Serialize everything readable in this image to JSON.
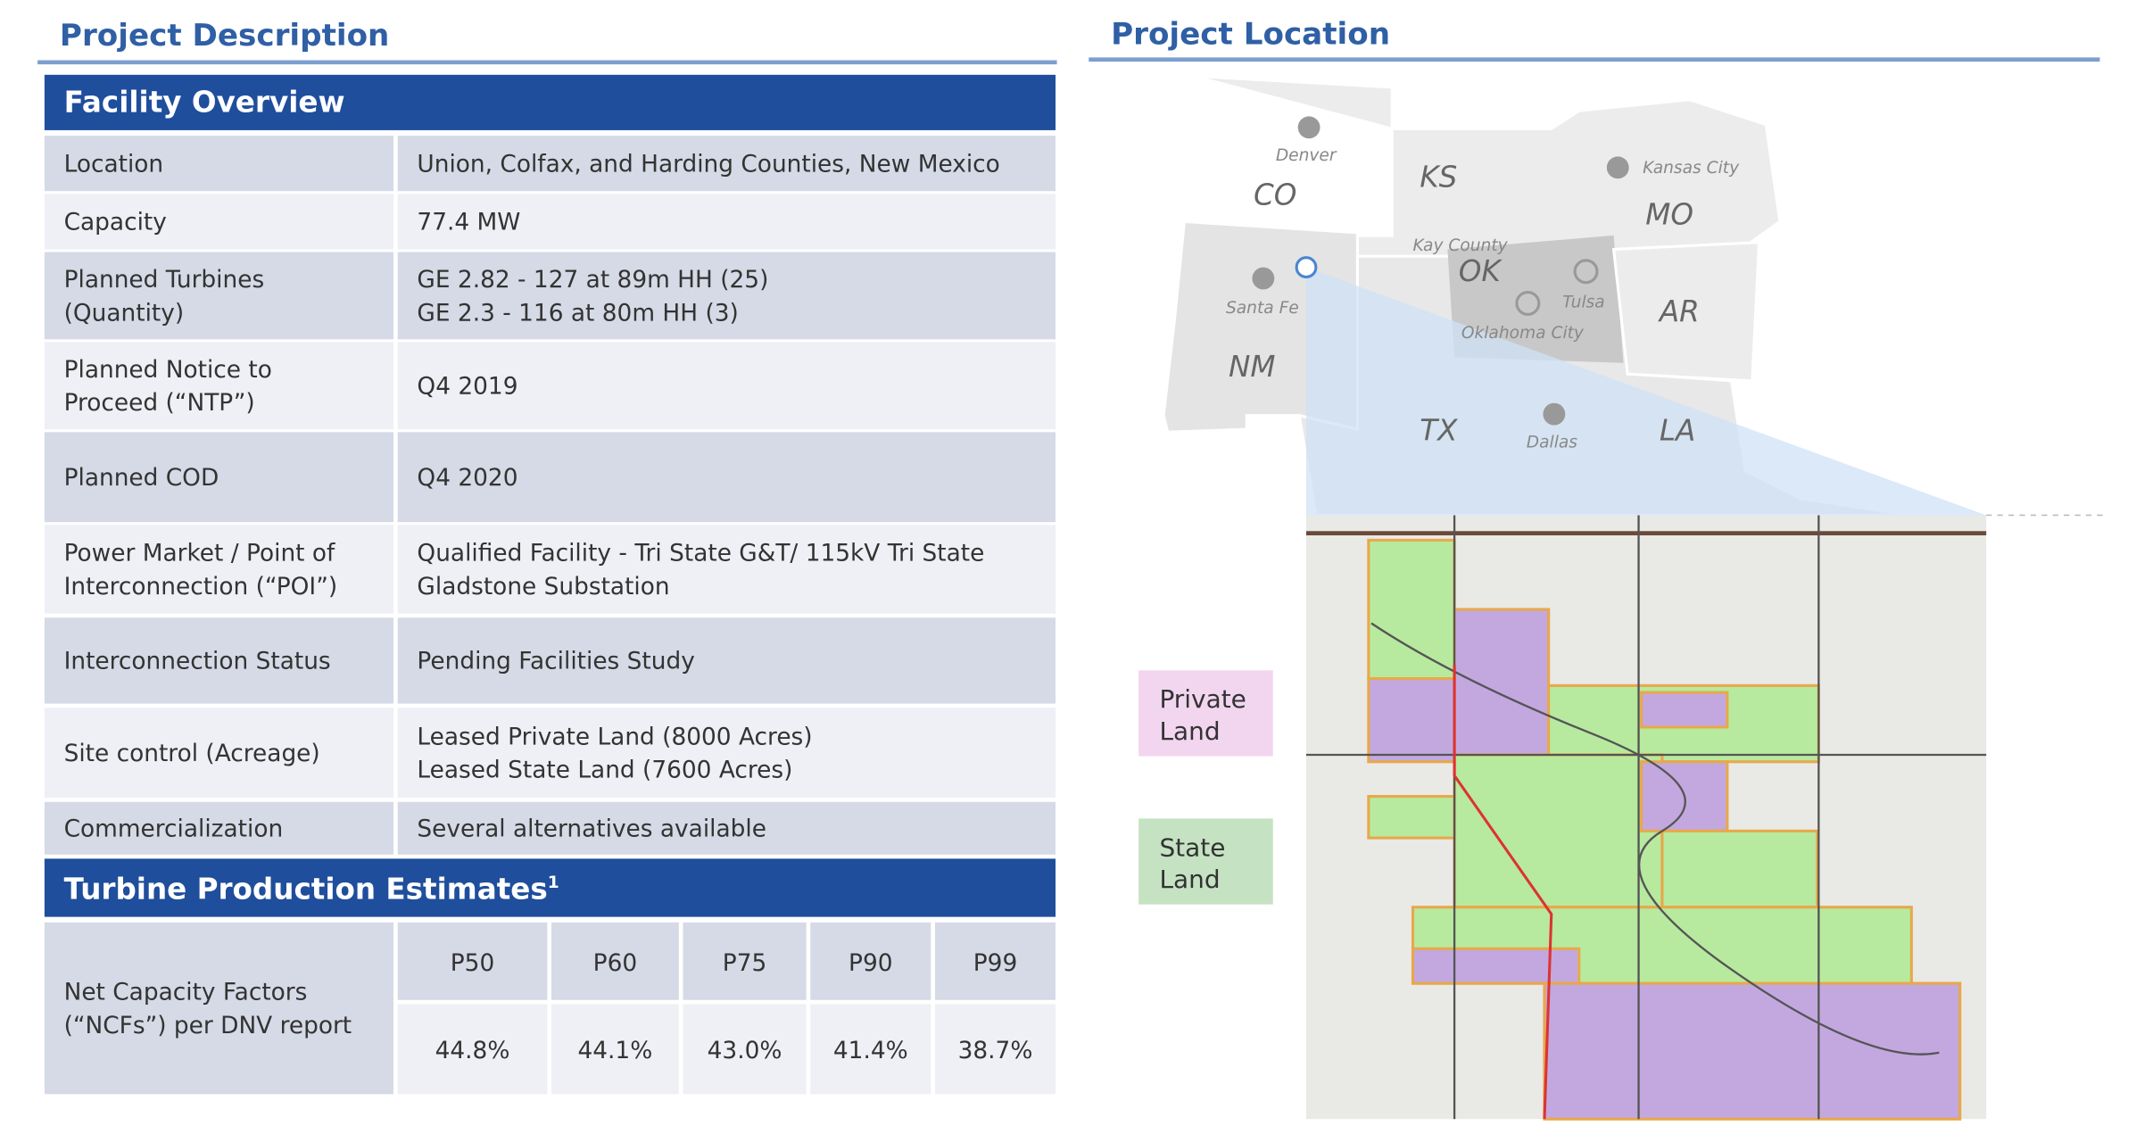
{
  "left_title": "Project Description",
  "facility": {
    "title": "Facility Overview",
    "rows": [
      {
        "label": [
          "Location"
        ],
        "value": [
          "Union, Colfax, and Harding Counties, New Mexico"
        ]
      },
      {
        "label": [
          "Capacity"
        ],
        "value": [
          "77.4 MW"
        ]
      },
      {
        "label": [
          "Planned Turbines",
          "(Quantity)"
        ],
        "value": [
          "GE 2.82 - 127 at 89m HH (25)",
          "GE 2.3 - 116 at 80m HH (3)"
        ]
      },
      {
        "label": [
          "Planned Notice to",
          "Proceed (“NTP”)"
        ],
        "value": [
          "Q4 2019"
        ]
      },
      {
        "label": [
          "Planned COD"
        ],
        "value": [
          "Q4 2020"
        ]
      },
      {
        "label": [
          "Power Market / Point of",
          "Interconnection (“POI”)"
        ],
        "value": [
          "Qualified Facility - Tri State G&T/ 115kV Tri State",
          "Gladstone Substation"
        ]
      },
      {
        "label": [
          "Interconnection Status"
        ],
        "value": [
          "Pending Facilities Study"
        ]
      },
      {
        "label": [
          "Site control (Acreage)"
        ],
        "value": [
          "Leased Private Land (8000 Acres)",
          "Leased State Land (7600 Acres)"
        ]
      },
      {
        "label": [
          "Commercialization"
        ],
        "value": [
          "Several alternatives available"
        ]
      }
    ]
  },
  "production": {
    "title": "Turbine Production Estimates",
    "note_mark": "1",
    "metric": [
      "Net Capacity Factors",
      "(“NCFs”) per DNV report"
    ],
    "columns": [
      "P50",
      "P60",
      "P75",
      "P90",
      "P99"
    ],
    "values": [
      "44.8%",
      "44.1%",
      "43.0%",
      "41.4%",
      "38.7%"
    ]
  },
  "map": {
    "title": "Project Location",
    "states": [
      "CO",
      "KS",
      "MO",
      "OK",
      "AR",
      "NM",
      "TX",
      "LA"
    ],
    "cities": [
      "Denver",
      "Kansas City",
      "Kay County",
      "Tulsa",
      "Oklahoma City",
      "Santa Fe",
      "Dallas"
    ],
    "legend": [
      [
        "Private",
        "Land"
      ],
      [
        "State",
        "Land"
      ]
    ]
  }
}
